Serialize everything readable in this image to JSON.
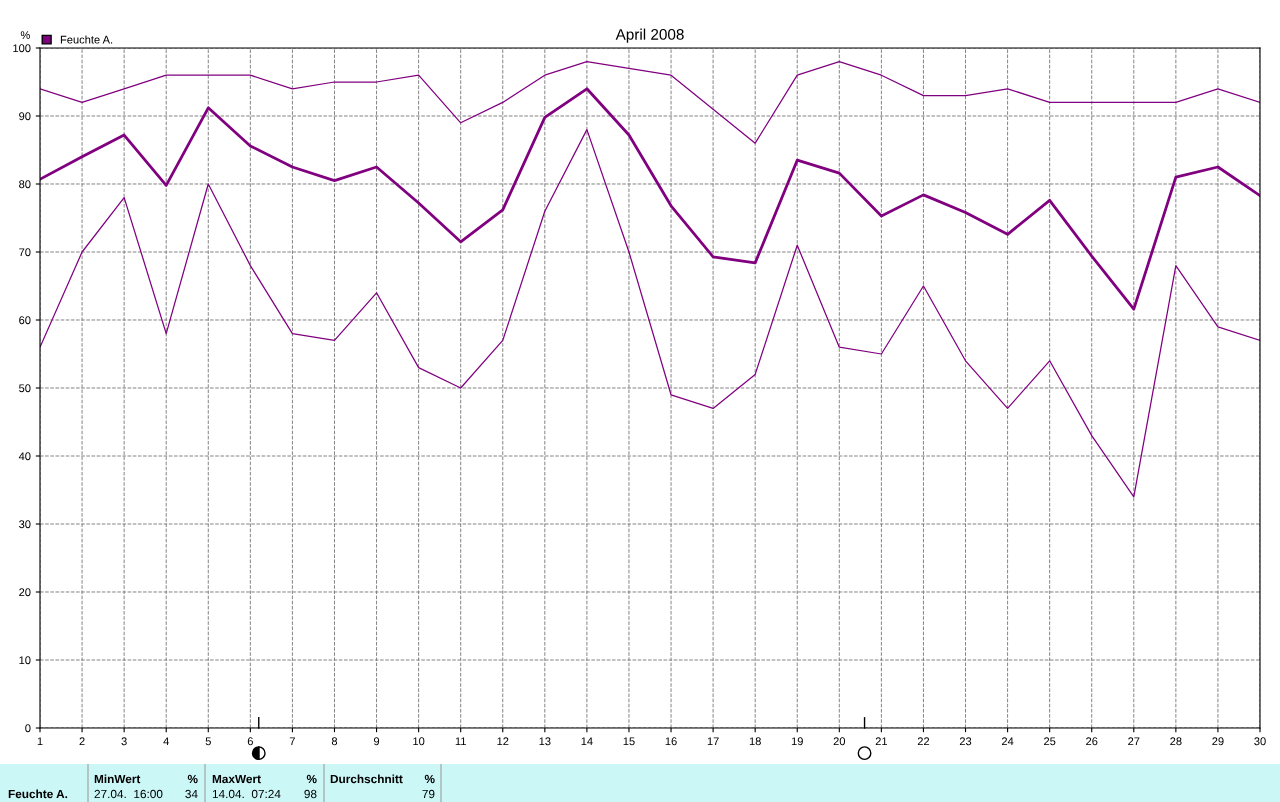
{
  "chart_data": {
    "type": "line",
    "title": "April 2008",
    "ylabel": "%",
    "x": [
      1,
      2,
      3,
      4,
      5,
      6,
      7,
      8,
      9,
      10,
      11,
      12,
      13,
      14,
      15,
      16,
      17,
      18,
      19,
      20,
      21,
      22,
      23,
      24,
      25,
      26,
      27,
      28,
      29,
      30
    ],
    "series": [
      {
        "color": "#800080",
        "values": [
          94,
          92,
          94,
          96,
          96,
          96,
          94,
          95,
          95,
          96,
          89,
          92,
          96,
          98,
          97,
          96,
          91,
          86,
          96,
          98,
          96,
          93,
          93,
          94,
          92,
          92,
          92,
          92,
          94,
          92
        ]
      },
      {
        "name": "Feuchte A.",
        "color": "#800080",
        "values": [
          80.7,
          84,
          87.2,
          79.8,
          91.2,
          85.6,
          82.5,
          80.5,
          82.5,
          77.2,
          71.5,
          76.2,
          89.8,
          94,
          87.2,
          76.8,
          69.3,
          68.4,
          83.5,
          81.6,
          75.3,
          78.4,
          75.8,
          72.6,
          77.6,
          69.4,
          61.6,
          81,
          82.5,
          78.3
        ]
      },
      {
        "color": "#800080",
        "values": [
          56,
          70,
          78,
          58,
          80,
          68,
          58,
          57,
          64,
          53,
          50,
          57,
          76,
          88,
          70,
          49,
          47,
          52,
          71,
          56,
          55,
          65,
          54,
          47,
          54,
          43,
          34,
          68,
          59,
          57
        ]
      }
    ],
    "xlim": [
      1,
      30
    ],
    "xticks": [
      1,
      2,
      3,
      4,
      5,
      6,
      7,
      8,
      9,
      10,
      11,
      12,
      13,
      14,
      15,
      16,
      17,
      18,
      19,
      20,
      21,
      22,
      23,
      24,
      25,
      26,
      27,
      28,
      29,
      30
    ],
    "ylim": [
      0,
      100
    ],
    "yticks": [
      0,
      10,
      20,
      30,
      40,
      50,
      60,
      70,
      80,
      90,
      100
    ],
    "grid": true,
    "legend": "top left",
    "marker": "none",
    "annotations": [
      "Feuchte A.",
      "MinWert",
      "%",
      "27.04.  16:00",
      "34",
      "MaxWert",
      "%",
      "14.04.  07:24",
      "98",
      "Durchschnitt",
      "%",
      "79"
    ]
  }
}
